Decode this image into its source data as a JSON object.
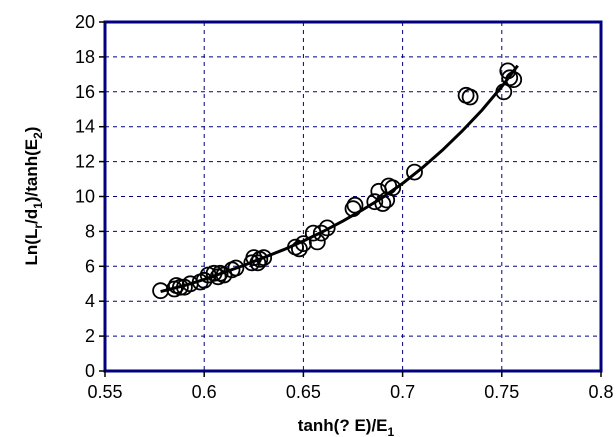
{
  "chart_data": {
    "type": "scatter",
    "xlabel": {
      "main": "tanh(? E)/E",
      "sub": "1"
    },
    "ylabel": {
      "p1": "Ln(L",
      "s1": "r",
      "p2": "/d",
      "s2": "1",
      "p3": ")/tanh(E",
      "s3": "2",
      "p4": ")"
    },
    "xlim": [
      0.55,
      0.8
    ],
    "ylim": [
      0,
      20
    ],
    "x_ticks": [
      "0.55",
      "0.6",
      "0.65",
      "0.7",
      "0.75",
      "0.8"
    ],
    "x_tick_values": [
      0.55,
      0.6,
      0.65,
      0.7,
      0.75,
      0.8
    ],
    "y_ticks": [
      "0",
      "2",
      "4",
      "6",
      "8",
      "10",
      "12",
      "14",
      "16",
      "18",
      "20"
    ],
    "y_tick_values": [
      0,
      2,
      4,
      6,
      8,
      10,
      12,
      14,
      16,
      18,
      20
    ],
    "grid": true,
    "legend": "none",
    "plot_border_color": "#000080",
    "series": [
      {
        "kind": "markers",
        "marker": "open-circle",
        "points": [
          [
            0.578,
            4.6
          ],
          [
            0.585,
            4.7
          ],
          [
            0.586,
            4.9
          ],
          [
            0.588,
            4.8
          ],
          [
            0.59,
            4.8
          ],
          [
            0.593,
            5.0
          ],
          [
            0.598,
            5.1
          ],
          [
            0.6,
            5.2
          ],
          [
            0.602,
            5.5
          ],
          [
            0.605,
            5.6
          ],
          [
            0.607,
            5.4
          ],
          [
            0.608,
            5.6
          ],
          [
            0.61,
            5.5
          ],
          [
            0.614,
            5.8
          ],
          [
            0.616,
            5.9
          ],
          [
            0.624,
            6.2
          ],
          [
            0.625,
            6.5
          ],
          [
            0.627,
            6.2
          ],
          [
            0.628,
            6.4
          ],
          [
            0.63,
            6.5
          ],
          [
            0.646,
            7.1
          ],
          [
            0.648,
            7.0
          ],
          [
            0.65,
            7.3
          ],
          [
            0.655,
            7.9
          ],
          [
            0.657,
            7.4
          ],
          [
            0.659,
            7.9
          ],
          [
            0.662,
            8.2
          ],
          [
            0.675,
            9.3
          ],
          [
            0.676,
            9.5
          ],
          [
            0.686,
            9.7
          ],
          [
            0.688,
            10.3
          ],
          [
            0.69,
            9.6
          ],
          [
            0.692,
            9.8
          ],
          [
            0.693,
            10.6
          ],
          [
            0.695,
            10.5
          ],
          [
            0.706,
            11.4
          ],
          [
            0.732,
            15.8
          ],
          [
            0.734,
            15.7
          ],
          [
            0.751,
            16.0
          ],
          [
            0.753,
            17.2
          ],
          [
            0.754,
            16.8
          ],
          [
            0.756,
            16.7
          ]
        ]
      },
      {
        "kind": "fit-line",
        "x": [
          0.578,
          0.59,
          0.6,
          0.61,
          0.62,
          0.63,
          0.64,
          0.65,
          0.66,
          0.67,
          0.68,
          0.69,
          0.7,
          0.71,
          0.72,
          0.73,
          0.74,
          0.75,
          0.758
        ],
        "y": [
          4.55,
          4.9,
          5.25,
          5.65,
          6.05,
          6.5,
          6.95,
          7.45,
          8.0,
          8.6,
          9.25,
          9.95,
          10.75,
          11.65,
          12.65,
          13.75,
          14.95,
          16.3,
          17.5
        ]
      }
    ]
  }
}
